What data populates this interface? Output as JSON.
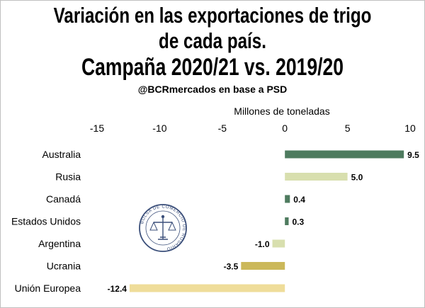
{
  "title_lines": [
    "Variación en las exportaciones de trigo",
    "de cada país.",
    "Campaña 2020/21 vs. 2019/20"
  ],
  "source": "@BCRmercados en base a PSD",
  "seal_text": "BOLSA DE COMERCIO DE ROSARIO",
  "chart_data": {
    "type": "bar",
    "orientation": "horizontal",
    "title": "Variación en las exportaciones de trigo de cada país. Campaña 2020/21 vs. 2019/20",
    "subtitle": "@BCRmercados en base a PSD",
    "xlabel": "Millones de toneladas",
    "xlabel_position": "top",
    "xlim": [
      -15,
      10
    ],
    "xticks": [
      -15,
      -10,
      -5,
      0,
      5,
      10
    ],
    "xtick_labels": [
      "-15",
      "-10",
      "-5",
      "0",
      "5",
      "10"
    ],
    "categories": [
      "Australia",
      "Rusia",
      "Canadá",
      "Estados Unidos",
      "Argentina",
      "Ucrania",
      "Unión Europea"
    ],
    "values": [
      9.5,
      5.0,
      0.4,
      0.3,
      -1.0,
      -3.5,
      -12.4
    ],
    "value_labels": [
      "9.5",
      "5.0",
      "0.4",
      "0.3",
      "-1.0",
      "-3.5",
      "-12.4"
    ],
    "colors": [
      "#4e7b5f",
      "#d8dfae",
      "#4e7b5f",
      "#4e7b5f",
      "#d8dfae",
      "#cbb85a",
      "#efdd9a"
    ],
    "grid": false,
    "legend": "none"
  }
}
